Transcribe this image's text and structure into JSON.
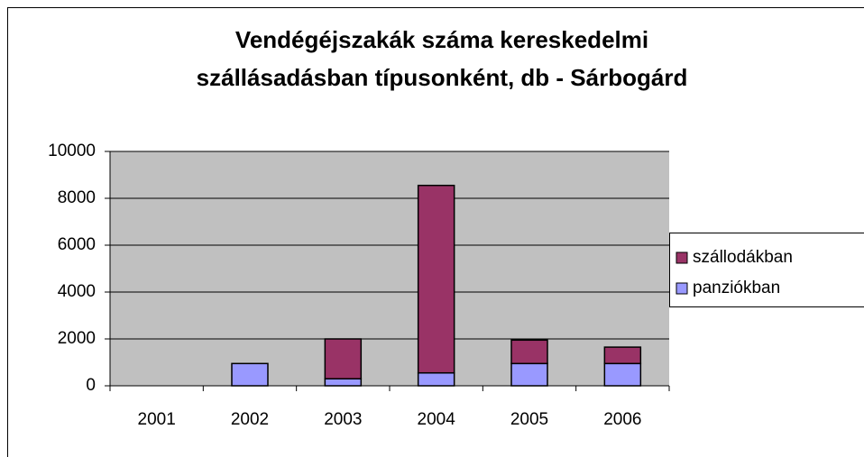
{
  "chart_data": {
    "type": "stacked_bar",
    "title": [
      "Vendégéjszakák száma kereskedelmi",
      "szállásadásban típusonként, db - Sárbogárd"
    ],
    "categories": [
      "2001",
      "2002",
      "2003",
      "2004",
      "2005",
      "2006"
    ],
    "series": [
      {
        "name": "panziókban",
        "color": "#9999ff",
        "values": [
          0,
          950,
          300,
          550,
          950,
          950
        ]
      },
      {
        "name": "szállodákban",
        "color": "#993366",
        "values": [
          0,
          0,
          1700,
          8000,
          1000,
          700
        ]
      }
    ],
    "ylim": [
      0,
      10000
    ],
    "yticks": [
      0,
      2000,
      4000,
      6000,
      8000,
      10000
    ],
    "grid": true,
    "legend": "right"
  }
}
